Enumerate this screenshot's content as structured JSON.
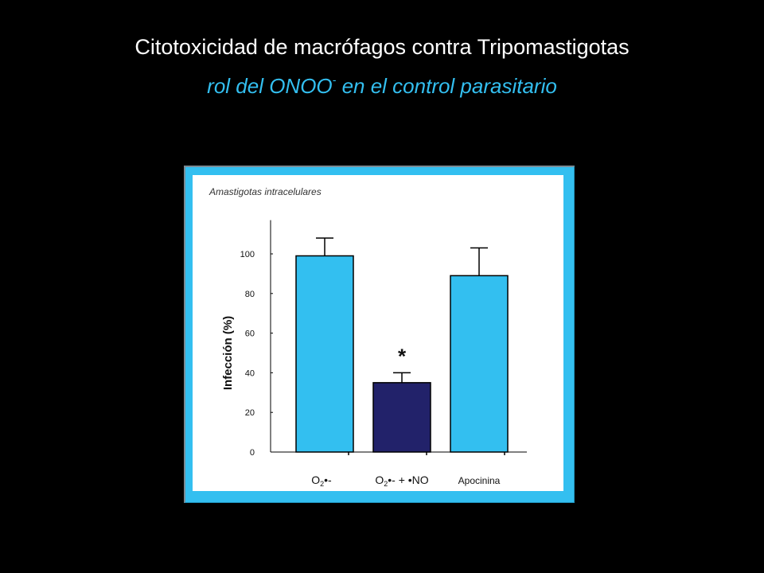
{
  "slide": {
    "title": "Citotoxicidad de macrófagos contra Tripomastigotas",
    "subtitle_main": "rol del ONOO",
    "subtitle_sup": "-",
    "subtitle_rest": " en el control parasitario"
  },
  "colors": {
    "background": "#000000",
    "frame": "#33bff0",
    "bar_light": "#33bff0",
    "bar_dark": "#22226a",
    "subtitle": "#33bff0"
  },
  "chart_data": {
    "type": "bar",
    "title": "Amastigotas intracelulares",
    "xlabel": "",
    "ylabel": "Infección (%)",
    "ylim": [
      0,
      115
    ],
    "yticks": [
      0,
      20,
      40,
      60,
      80,
      100
    ],
    "grid": false,
    "categories": [
      "O2•-",
      "O2•- + •NO",
      "Apocinina"
    ],
    "category_labels": [
      {
        "base": "O",
        "sub": "2",
        "rest": "•-"
      },
      {
        "base": "O",
        "sub": "2",
        "rest": "•- + •NO"
      },
      {
        "base": "Apocinina",
        "sub": "",
        "rest": ""
      }
    ],
    "values": [
      99,
      35,
      89
    ],
    "error_upper": [
      108,
      40,
      103
    ],
    "bar_colors": [
      "#33bff0",
      "#22226a",
      "#33bff0"
    ],
    "annotations": [
      {
        "category_index": 1,
        "text": "*"
      }
    ]
  }
}
